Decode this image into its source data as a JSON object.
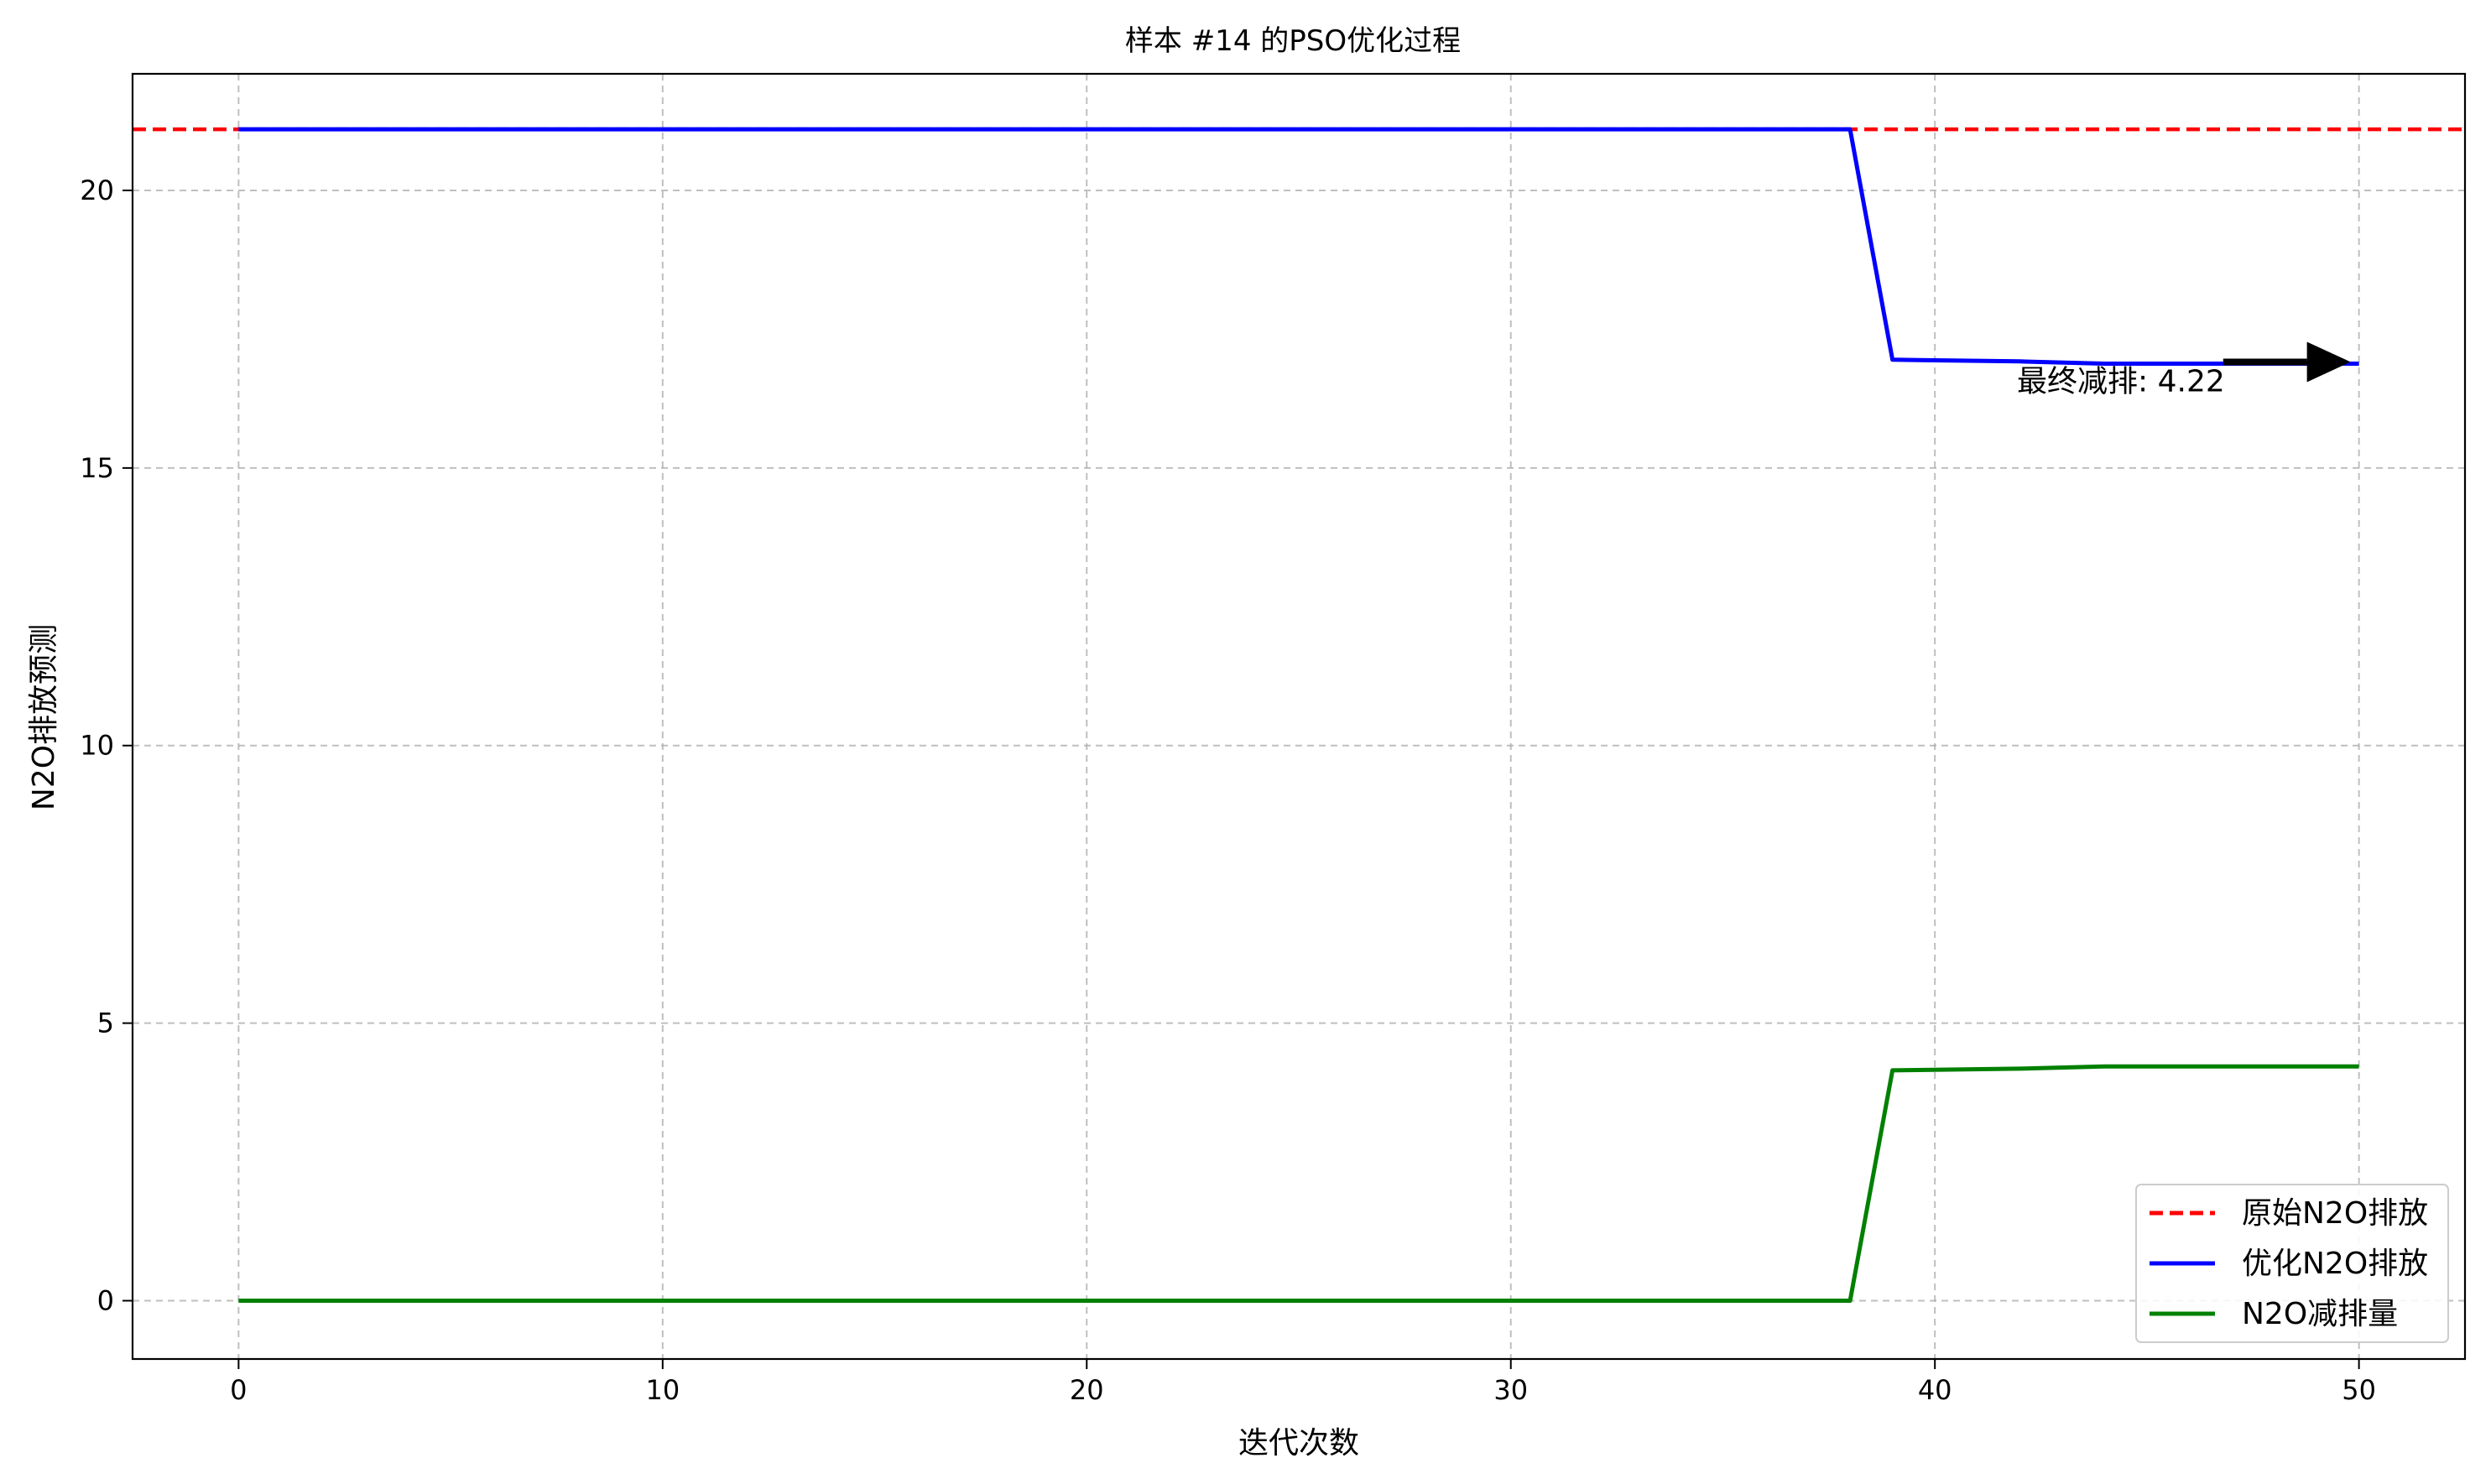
{
  "chart_data": {
    "type": "line",
    "title": "样本 #14 的PSO优化过程",
    "xlabel": "迭代次数",
    "ylabel": "N2O排放预测",
    "xlim": [
      -2.5,
      52.5
    ],
    "ylim": [
      -1.05,
      22.1
    ],
    "x_ticks": [
      0,
      10,
      20,
      30,
      40,
      50
    ],
    "y_ticks": [
      0,
      5,
      10,
      15,
      20
    ],
    "grid": true,
    "legend_position": "lower-right",
    "series": [
      {
        "name": "原始N2O排放",
        "style": "dashed",
        "color": "#ff0000",
        "type": "hline",
        "y": 21.1
      },
      {
        "name": "优化N2O排放",
        "style": "solid",
        "color": "#0000ff",
        "x": [
          0,
          38,
          39,
          42,
          44,
          50
        ],
        "y": [
          21.1,
          21.1,
          16.95,
          16.92,
          16.88,
          16.88
        ]
      },
      {
        "name": "N2O减排量",
        "style": "solid",
        "color": "#008000",
        "x": [
          0,
          38,
          39,
          42,
          44,
          50
        ],
        "y": [
          0,
          0,
          4.15,
          4.18,
          4.22,
          4.22
        ]
      }
    ],
    "annotation": {
      "text": "最终减排: 4.22",
      "target": [
        50,
        16.88
      ],
      "text_anchor_data": [
        46.6,
        16.5
      ]
    }
  }
}
